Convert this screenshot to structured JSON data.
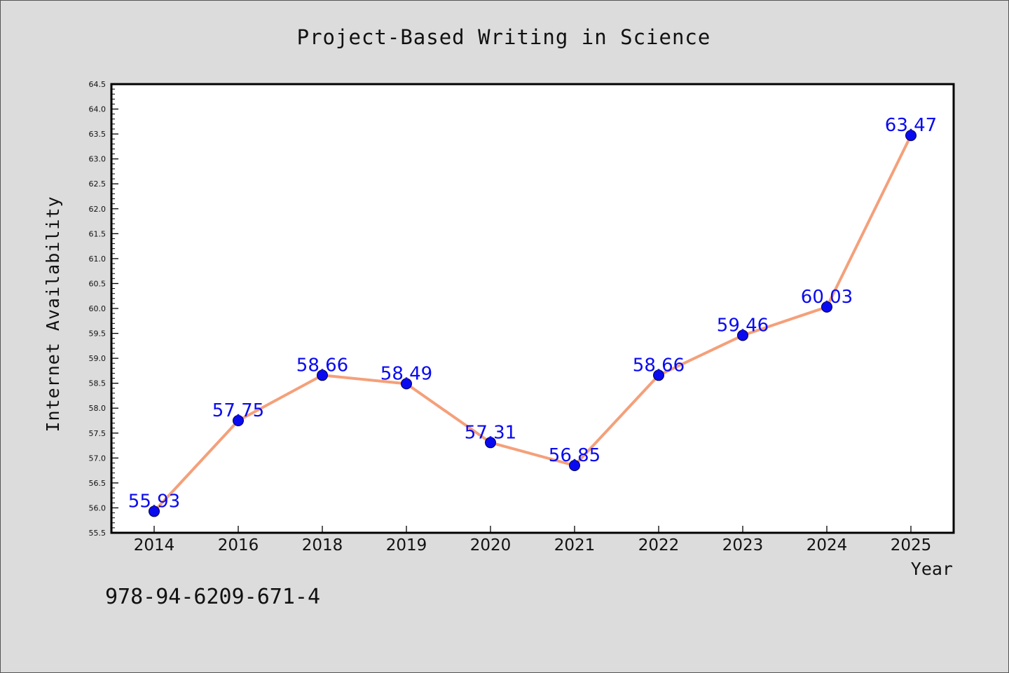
{
  "chart_data": {
    "type": "line",
    "title": "Project-Based Writing in Science",
    "xlabel": "Year",
    "ylabel": "Internet Availability",
    "categories": [
      "2014",
      "2016",
      "2018",
      "2019",
      "2020",
      "2021",
      "2022",
      "2023",
      "2024",
      "2025"
    ],
    "series": [
      {
        "values": [
          55.93,
          57.75,
          58.66,
          58.49,
          57.31,
          56.85,
          58.66,
          59.46,
          60.03,
          63.47
        ],
        "data_labels": [
          "55.93",
          "57.75",
          "58.66",
          "58.49",
          "57.31",
          "56.85",
          "58.66",
          "59.46",
          "60.03",
          "63.47"
        ],
        "line_color": "#f4a07a",
        "marker_color": "#0a0af0",
        "label_color": "#0a0af0"
      }
    ],
    "ylim": [
      55.5,
      64.5
    ],
    "yticks": [
      "55.5",
      "56.0",
      "56.5",
      "57.0",
      "57.5",
      "58.0",
      "58.5",
      "59.0",
      "59.5",
      "60.0",
      "60.5",
      "61.0",
      "61.5",
      "62.0",
      "62.5",
      "63.0",
      "63.5",
      "64.0",
      "64.5"
    ],
    "grid": false,
    "legend": "none",
    "colors": {
      "background": "#dcdcdc",
      "plot_background": "#ffffff",
      "axes": "#000000",
      "text": "#111111"
    }
  },
  "footer": {
    "isbn": "978-94-6209-671-4"
  }
}
